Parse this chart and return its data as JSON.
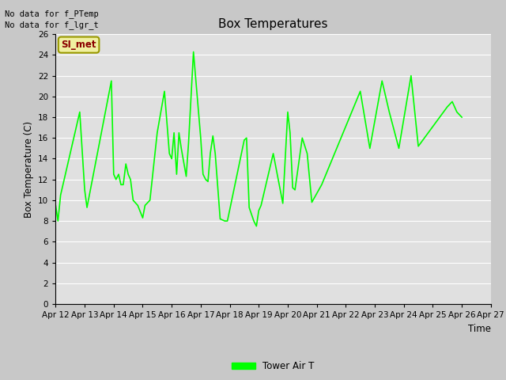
{
  "title": "Box Temperatures",
  "xlabel": "Time",
  "ylabel": "Box Temperature (C)",
  "ylim": [
    0,
    26
  ],
  "yticks": [
    0,
    2,
    4,
    6,
    8,
    10,
    12,
    14,
    16,
    18,
    20,
    22,
    24,
    26
  ],
  "fig_bg_color": "#c8c8c8",
  "plot_bg_color": "#e0e0e0",
  "line_color": "#00ff00",
  "annotations_text": [
    "No data for f_PTemp",
    "No data for f_lgr_t"
  ],
  "legend_label": "Tower Air T",
  "legend_color": "#00ff00",
  "si_met_label": "SI_met",
  "x_labels": [
    "Apr 12",
    "Apr 13",
    "Apr 14",
    "Apr 15",
    "Apr 16",
    "Apr 17",
    "Apr 18",
    "Apr 19",
    "Apr 20",
    "Apr 21",
    "Apr 22",
    "Apr 23",
    "Apr 24",
    "Apr 25",
    "Apr 26",
    "Apr 27"
  ],
  "x_data": [
    0.0,
    0.08,
    0.17,
    0.83,
    1.0,
    1.08,
    1.92,
    2.0,
    2.08,
    2.17,
    2.25,
    2.33,
    2.42,
    2.5,
    2.58,
    2.67,
    2.83,
    3.0,
    3.08,
    3.25,
    3.5,
    3.75,
    3.92,
    4.0,
    4.08,
    4.17,
    4.25,
    4.33,
    4.5,
    4.58,
    4.75,
    5.0,
    5.08,
    5.17,
    5.25,
    5.33,
    5.42,
    5.5,
    5.67,
    5.83,
    5.92,
    6.5,
    6.58,
    6.67,
    6.83,
    6.92,
    7.0,
    7.08,
    7.5,
    7.83,
    8.0,
    8.08,
    8.17,
    8.25,
    8.5,
    8.67,
    8.83,
    9.17,
    10.5,
    10.83,
    11.25,
    11.5,
    11.83,
    12.25,
    12.5,
    13.5,
    13.67,
    13.83,
    14.0
  ],
  "y_values": [
    9.5,
    8.0,
    10.5,
    18.5,
    11.0,
    9.3,
    21.5,
    12.5,
    12.0,
    12.5,
    11.5,
    11.5,
    13.5,
    12.5,
    12.0,
    10.0,
    9.5,
    8.3,
    9.5,
    10.0,
    16.5,
    20.5,
    14.5,
    14.0,
    16.5,
    12.5,
    16.5,
    15.0,
    12.3,
    15.5,
    24.3,
    16.0,
    12.5,
    12.0,
    11.8,
    14.5,
    16.2,
    14.5,
    8.2,
    8.0,
    8.0,
    15.8,
    16.0,
    9.3,
    8.0,
    7.5,
    9.0,
    9.5,
    14.5,
    9.7,
    18.5,
    16.5,
    11.2,
    11.0,
    16.0,
    14.5,
    9.8,
    11.5,
    20.5,
    15.0,
    21.5,
    18.5,
    15.0,
    22.0,
    15.2,
    19.0,
    19.5,
    18.5,
    18.0
  ]
}
